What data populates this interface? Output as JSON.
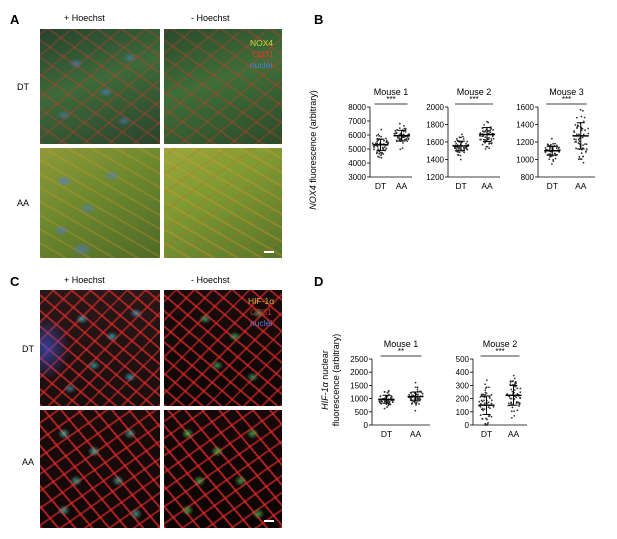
{
  "panels": {
    "A": {
      "letter": "A",
      "col_labels": [
        "+ Hoechst",
        "- Hoechst"
      ],
      "row_labels": [
        "DT",
        "AA"
      ],
      "legend": [
        {
          "text": "NOX4",
          "color": "#c8d840"
        },
        {
          "text": "CD31",
          "color": "#e03a2a"
        },
        {
          "text": "nuclei",
          "color": "#4f7fe0"
        }
      ]
    },
    "B": {
      "letter": "B",
      "ylabel_italic": "NOX4",
      "ylabel_rest": " fluorescence (arbitrary)"
    },
    "C": {
      "letter": "C",
      "col_labels": [
        "+ Hoechst",
        "- Hoechst"
      ],
      "row_labels": [
        "DT",
        "AA"
      ],
      "legend": [
        {
          "text": "HIF-1α",
          "color": "#d9b23a"
        },
        {
          "text": "CD31",
          "color": "#c0302a"
        },
        {
          "text": "nuclei",
          "color": "#5a7ad0"
        }
      ]
    },
    "D": {
      "letter": "D",
      "ylabel_line1_italic": "HIF-1α",
      "ylabel_line1_rest": " nuclear",
      "ylabel_line2": "fluorescence (arbitrary)"
    }
  },
  "chart_data": [
    {
      "type": "scatter",
      "title": "Mouse 1",
      "categories": [
        "DT",
        "AA"
      ],
      "ylim": [
        3000,
        8000
      ],
      "yticks": [
        3000,
        4000,
        5000,
        6000,
        7000,
        8000
      ],
      "significance": "***",
      "series": [
        {
          "mean": 5300,
          "sd": 400
        },
        {
          "mean": 5950,
          "sd": 380
        }
      ]
    },
    {
      "type": "scatter",
      "title": "Mouse 2",
      "categories": [
        "DT",
        "AA"
      ],
      "ylim": [
        1200,
        2000
      ],
      "yticks": [
        1200,
        1400,
        1600,
        1800,
        2000
      ],
      "significance": "***",
      "series": [
        {
          "mean": 1555,
          "sd": 55
        },
        {
          "mean": 1685,
          "sd": 80
        }
      ]
    },
    {
      "type": "scatter",
      "title": "Mouse 3",
      "categories": [
        "DT",
        "AA"
      ],
      "ylim": [
        800,
        1600
      ],
      "yticks": [
        800,
        1000,
        1200,
        1400,
        1600
      ],
      "significance": "***",
      "series": [
        {
          "mean": 1100,
          "sd": 50
        },
        {
          "mean": 1270,
          "sd": 150
        }
      ]
    },
    {
      "type": "scatter",
      "title": "Mouse 1",
      "categories": [
        "DT",
        "AA"
      ],
      "ylim": [
        0,
        2500
      ],
      "yticks": [
        0,
        500,
        1000,
        1500,
        2000,
        2500
      ],
      "significance": "**",
      "series": [
        {
          "mean": 975,
          "sd": 150
        },
        {
          "mean": 1080,
          "sd": 170
        }
      ]
    },
    {
      "type": "scatter",
      "title": "Mouse 2",
      "categories": [
        "DT",
        "AA"
      ],
      "ylim": [
        0,
        500
      ],
      "yticks": [
        0,
        100,
        200,
        300,
        400,
        500
      ],
      "significance": "***",
      "series": [
        {
          "mean": 150,
          "sd": 70
        },
        {
          "mean": 225,
          "sd": 75
        }
      ]
    }
  ]
}
